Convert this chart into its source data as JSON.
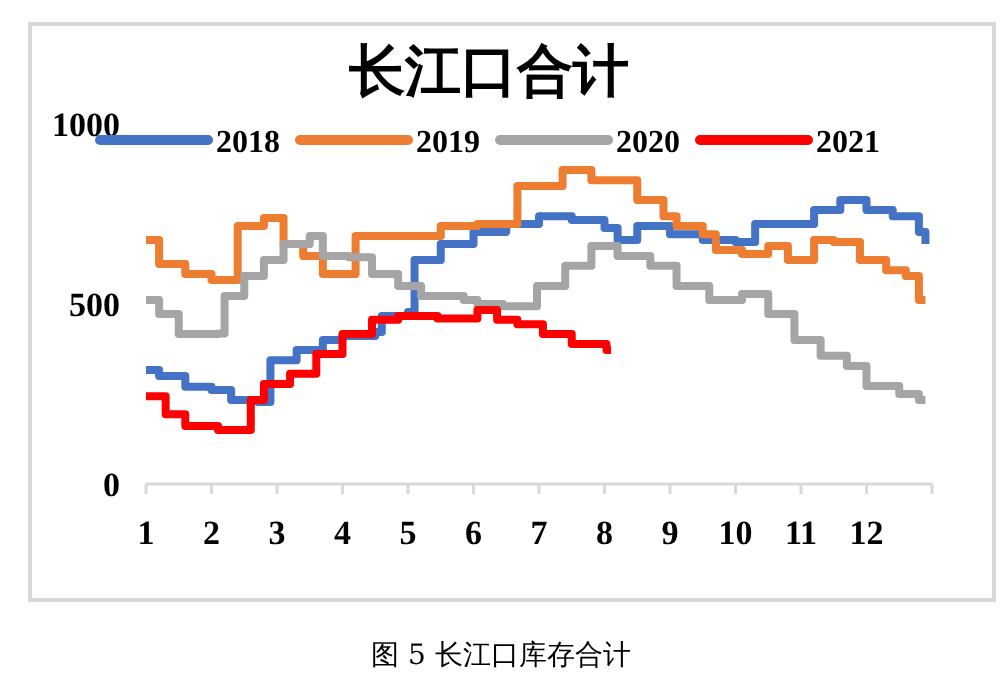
{
  "chart_data": {
    "type": "step",
    "title": "长江口合计",
    "annotations": [
      "图 5 长江口库存合计"
    ],
    "xlim": [
      1,
      13
    ],
    "xticks": [
      1,
      2,
      3,
      4,
      5,
      6,
      7,
      8,
      9,
      10,
      11,
      12
    ],
    "ylim": [
      0,
      1000
    ],
    "yticks": [
      0,
      500,
      1000
    ],
    "grid": false,
    "legend": "top",
    "marker": "none",
    "line_style": "solid",
    "series": [
      {
        "name": "2018",
        "color": "#4472c4",
        "x": [
          1,
          1.2,
          1.6,
          2,
          2.3,
          2.7,
          2.9,
          3.3,
          3.7,
          4,
          4.5,
          4.6,
          5,
          5.1,
          5.5,
          6,
          6.5,
          7,
          7.5,
          8,
          8.2,
          8.5,
          9,
          9.5,
          10,
          10.3,
          10.8,
          11.2,
          11.6,
          12,
          12.4,
          12.8,
          12.9
        ],
        "values": [
          317,
          300,
          270,
          261,
          233,
          228,
          344,
          372,
          400,
          411,
          422,
          467,
          478,
          622,
          667,
          700,
          722,
          744,
          733,
          711,
          678,
          717,
          694,
          678,
          672,
          722,
          722,
          761,
          789,
          761,
          744,
          700,
          667
        ]
      },
      {
        "name": "2019",
        "color": "#ed7d31",
        "x": [
          1,
          1.2,
          1.6,
          2,
          2.4,
          2.8,
          3.1,
          3.4,
          3.7,
          4.2,
          4.85,
          5.5,
          6.06,
          6.67,
          7.36,
          7.8,
          8.27,
          8.5,
          8.9,
          9.1,
          9.5,
          9.7,
          10.1,
          10.5,
          10.8,
          11.2,
          11.5,
          11.9,
          12.3,
          12.6,
          12.8,
          12.9
        ],
        "values": [
          678,
          611,
          583,
          567,
          717,
          739,
          667,
          633,
          583,
          689,
          689,
          717,
          722,
          828,
          872,
          844,
          844,
          789,
          744,
          717,
          694,
          650,
          639,
          661,
          622,
          678,
          672,
          622,
          594,
          578,
          511,
          511
        ]
      },
      {
        "name": "2020",
        "color": "#a5a5a5",
        "x": [
          1,
          1.2,
          1.5,
          2.1,
          2.2,
          2.5,
          2.8,
          3.1,
          3.5,
          3.7,
          4.1,
          4.45,
          4.85,
          5.2,
          5.85,
          6.06,
          6.45,
          6.97,
          7.4,
          7.8,
          8.2,
          8.7,
          9.1,
          9.6,
          10.1,
          10.5,
          10.9,
          11.3,
          11.7,
          12,
          12.5,
          12.8,
          12.9
        ],
        "values": [
          511,
          472,
          417,
          418,
          522,
          578,
          622,
          667,
          689,
          633,
          630,
          583,
          550,
          522,
          511,
          500,
          494,
          550,
          606,
          661,
          633,
          606,
          550,
          511,
          528,
          472,
          400,
          356,
          328,
          272,
          250,
          233,
          233
        ]
      },
      {
        "name": "2021",
        "color": "#ff0000",
        "x": [
          1,
          1.3,
          1.6,
          2.1,
          2.6,
          2.8,
          3.2,
          3.6,
          4,
          4.45,
          4.85,
          5.45,
          6.06,
          6.36,
          6.67,
          7.06,
          7.5,
          8.03,
          8.1
        ],
        "values": [
          244,
          194,
          161,
          150,
          233,
          278,
          306,
          361,
          417,
          456,
          467,
          460,
          483,
          456,
          444,
          417,
          389,
          372,
          372
        ]
      }
    ]
  }
}
